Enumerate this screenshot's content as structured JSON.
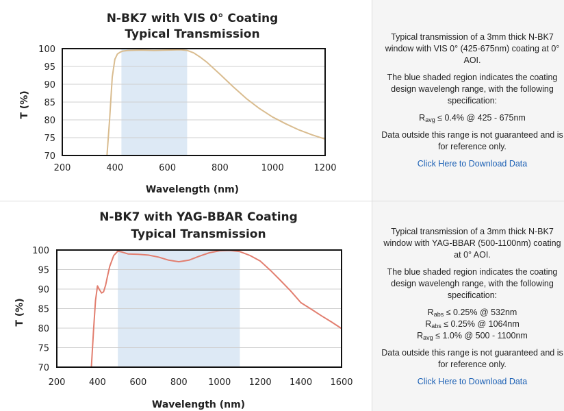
{
  "rows": [
    {
      "description": {
        "p1": "Typical transmission of a 3mm thick N-BK7 window with VIS 0° (425-675nm) coating at 0° AOI.",
        "p2": "The blue shaded region indicates the coating design wavelengh range, with the following specification:",
        "spec": [
          {
            "sym": "R",
            "sub": "avg",
            "text": " ≤ 0.4% @ 425 - 675nm"
          }
        ],
        "p3": "Data outside this range is not guaranteed and is for reference only.",
        "link": "Click Here to Download Data"
      }
    },
    {
      "description": {
        "p1": "Typical transmission of a 3mm thick N-BK7 window with YAG-BBAR (500-1100nm) coating at 0° AOI.",
        "p2": "The blue shaded region indicates the coating design wavelengh range, with the following specification:",
        "spec": [
          {
            "sym": "R",
            "sub": "abs",
            "text": " ≤ 0.25% @ 532nm"
          },
          {
            "sym": "R",
            "sub": "abs",
            "text": " ≤ 0.25% @ 1064nm"
          },
          {
            "sym": "R",
            "sub": "avg",
            "text": " ≤ 1.0% @ 500 - 1100nm"
          }
        ],
        "p3": "Data outside this range is not guaranteed and is for reference only.",
        "link": "Click Here to Download Data"
      }
    }
  ],
  "colors": {
    "shade": "#dde9f5",
    "grid": "#cfcfcf",
    "frame": "#111111",
    "curve1": "#d9bc8f",
    "curve2": "#e27e6f"
  },
  "chart_data": [
    {
      "type": "line",
      "title": [
        "N-BK7 with VIS 0° Coating",
        "Typical Transmission"
      ],
      "xlabel": "Wavelength (nm)",
      "ylabel": "T (%)",
      "xlim": [
        200,
        1200
      ],
      "ylim": [
        70,
        100
      ],
      "xticks": [
        200,
        400,
        600,
        800,
        1000,
        1200
      ],
      "yticks": [
        70,
        75,
        80,
        85,
        90,
        95,
        100
      ],
      "grid": true,
      "shaded_region": [
        425,
        675
      ],
      "series": [
        {
          "x": [
            370,
            380,
            390,
            400,
            410,
            420,
            430,
            450,
            500,
            550,
            600,
            650,
            675,
            700,
            725,
            750,
            800,
            850,
            900,
            950,
            1000,
            1050,
            1100,
            1150,
            1200
          ],
          "y": [
            70,
            80,
            92,
            97,
            98.5,
            99,
            99.3,
            99.5,
            99.6,
            99.5,
            99.6,
            99.7,
            99.5,
            98.8,
            97.6,
            96.2,
            92.8,
            89.3,
            86.0,
            83.2,
            80.8,
            78.9,
            77.2,
            75.8,
            74.6
          ]
        }
      ]
    },
    {
      "type": "line",
      "title": [
        "N-BK7 with YAG-BBAR Coating",
        "Typical Transmission"
      ],
      "xlabel": "Wavelength (nm)",
      "ylabel": "T (%)",
      "xlim": [
        200,
        1600
      ],
      "ylim": [
        70,
        100
      ],
      "xticks": [
        200,
        400,
        600,
        800,
        1000,
        1200,
        1400,
        1600
      ],
      "yticks": [
        70,
        75,
        80,
        85,
        90,
        95,
        100
      ],
      "grid": true,
      "shaded_region": [
        500,
        1100
      ],
      "series": [
        {
          "x": [
            370,
            380,
            390,
            400,
            410,
            420,
            430,
            440,
            450,
            460,
            480,
            500,
            520,
            550,
            600,
            650,
            700,
            750,
            800,
            850,
            900,
            950,
            1000,
            1050,
            1100,
            1150,
            1200,
            1250,
            1300,
            1350,
            1400,
            1450,
            1500,
            1550,
            1600
          ],
          "y": [
            70,
            79,
            87,
            90.8,
            89.8,
            89.0,
            89.3,
            91.0,
            93.5,
            95.8,
            98.6,
            99.7,
            99.5,
            99.0,
            98.9,
            98.7,
            98.2,
            97.4,
            97.0,
            97.4,
            98.4,
            99.3,
            99.8,
            99.9,
            99.6,
            98.6,
            97.2,
            94.8,
            92.2,
            89.5,
            86.5,
            84.9,
            83.2,
            81.6,
            79.9
          ]
        }
      ]
    }
  ]
}
